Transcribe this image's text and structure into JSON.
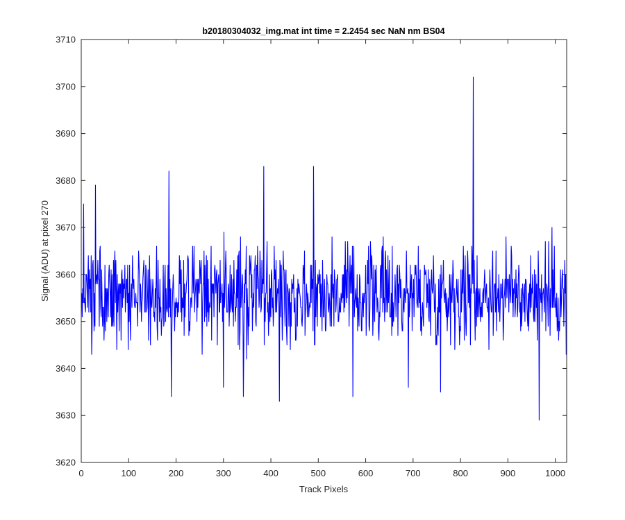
{
  "chart_data": {
    "type": "line",
    "title": "b20180304032_img.mat int time = 2.2454 sec  NaN nm BS04",
    "xlabel": "Track Pixels",
    "ylabel": "Signal (ADU) at pixel 270",
    "xlim": [
      0,
      1024
    ],
    "ylim": [
      3620,
      3710
    ],
    "xticks": [
      0,
      100,
      200,
      300,
      400,
      500,
      600,
      700,
      800,
      900,
      1000
    ],
    "xtick_labels": [
      "0",
      "100",
      "200",
      "300",
      "400",
      "500",
      "600",
      "700",
      "800",
      "900",
      "1000"
    ],
    "yticks": [
      3620,
      3630,
      3640,
      3650,
      3660,
      3670,
      3680,
      3690,
      3700,
      3710
    ],
    "ytick_labels": [
      "3620",
      "3630",
      "3640",
      "3650",
      "3660",
      "3670",
      "3680",
      "3690",
      "3700",
      "3710"
    ],
    "grid": false,
    "box": true,
    "series": [
      {
        "color": "#0000ff",
        "x": [
          1,
          1024
        ],
        "baseline": 3656,
        "noise_amplitude": 8,
        "notable_points": [
          {
            "x": 5,
            "y": 3675
          },
          {
            "x": 30,
            "y": 3679
          },
          {
            "x": 185,
            "y": 3682
          },
          {
            "x": 190,
            "y": 3634
          },
          {
            "x": 300,
            "y": 3636
          },
          {
            "x": 342,
            "y": 3634
          },
          {
            "x": 385,
            "y": 3683
          },
          {
            "x": 418,
            "y": 3633
          },
          {
            "x": 490,
            "y": 3683
          },
          {
            "x": 573,
            "y": 3634
          },
          {
            "x": 690,
            "y": 3636
          },
          {
            "x": 758,
            "y": 3635
          },
          {
            "x": 827,
            "y": 3702
          },
          {
            "x": 966,
            "y": 3629
          },
          {
            "x": 1023,
            "y": 3643
          }
        ]
      }
    ]
  }
}
